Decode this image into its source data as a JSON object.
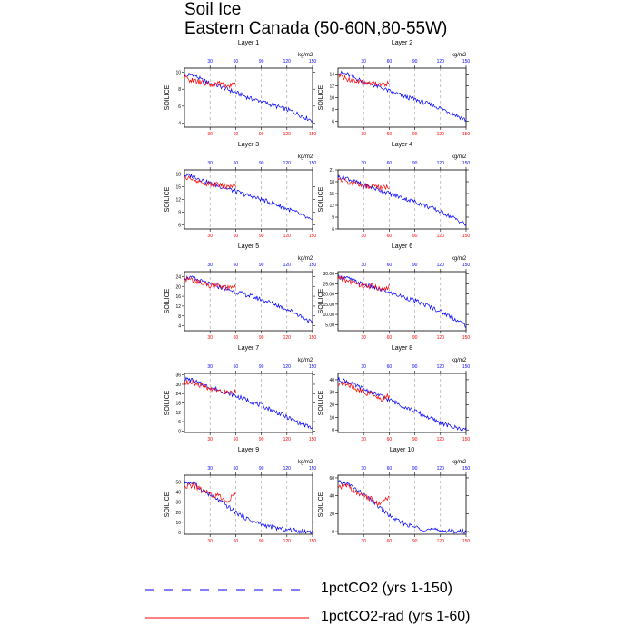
{
  "figure": {
    "title": "Soil Ice",
    "subtitle": "Eastern Canada (50-60N,80-55W)",
    "ylabel": "SOILICE",
    "top_axis_label": "kg/m2"
  },
  "legend": {
    "items": [
      {
        "label": "1pctCO2 (yrs 1-150)",
        "color": "#0000ff",
        "style": "dashed"
      },
      {
        "label": "1pctCO2-rad (yrs 1-60)",
        "color": "#ff0000",
        "style": "solid"
      }
    ]
  },
  "colors": {
    "blue_series": "#0000ff",
    "red_series": "#ff0000",
    "top_ticks": "#0000ff",
    "bottom_ticks": "#ff0000",
    "grid": "#9a9a9a"
  },
  "chart_data": [
    {
      "type": "line",
      "title": "Layer 1",
      "xlabel": "",
      "ylabel": "SOILICE",
      "xlim": [
        0,
        150
      ],
      "x_ticks": [
        30,
        60,
        90,
        120,
        150
      ],
      "ylim": [
        3.5,
        10.5
      ],
      "y_ticks": [
        "4",
        "6",
        "8",
        "10"
      ],
      "y_tick_values": [
        4,
        6,
        8,
        10
      ],
      "grid": "vertical dashed",
      "series": [
        {
          "x": [
            0,
            10,
            20,
            30,
            40,
            50,
            60,
            70,
            80,
            90,
            100,
            110,
            120,
            130,
            140,
            150
          ],
          "values": [
            9.6,
            9.8,
            9.1,
            8.7,
            8.4,
            8.0,
            7.6,
            7.2,
            6.8,
            6.6,
            6.2,
            5.9,
            5.6,
            5.2,
            4.7,
            4.3
          ]
        },
        {
          "x": [
            0,
            10,
            20,
            30,
            40,
            50,
            60
          ],
          "values": [
            9.4,
            9.0,
            8.8,
            8.5,
            8.7,
            8.4,
            8.6
          ]
        }
      ]
    },
    {
      "type": "line",
      "title": "Layer 2",
      "xlabel": "",
      "ylabel": "SOILICE",
      "xlim": [
        0,
        150
      ],
      "x_ticks": [
        30,
        60,
        90,
        120,
        150
      ],
      "ylim": [
        5,
        15
      ],
      "y_ticks": [
        "6",
        "8",
        "10",
        "12",
        "14"
      ],
      "y_tick_values": [
        6,
        8,
        10,
        12,
        14
      ],
      "grid": "vertical dashed",
      "series": [
        {
          "x": [
            0,
            10,
            20,
            30,
            40,
            50,
            60,
            70,
            80,
            90,
            100,
            110,
            120,
            130,
            140,
            150
          ],
          "values": [
            14.2,
            14.0,
            13.3,
            12.7,
            12.2,
            11.7,
            11.1,
            10.6,
            10.1,
            9.7,
            9.2,
            8.7,
            8.2,
            7.6,
            6.9,
            6.2
          ]
        },
        {
          "x": [
            0,
            10,
            20,
            30,
            40,
            50,
            60
          ],
          "values": [
            13.8,
            13.2,
            12.8,
            12.4,
            12.6,
            12.2,
            12.4
          ]
        }
      ]
    },
    {
      "type": "line",
      "title": "Layer 3",
      "xlabel": "",
      "ylabel": "SOILICE",
      "xlim": [
        0,
        150
      ],
      "x_ticks": [
        30,
        60,
        90,
        120,
        150
      ],
      "ylim": [
        5,
        19
      ],
      "y_ticks": [
        "6",
        "9",
        "12",
        "15",
        "18"
      ],
      "y_tick_values": [
        6,
        9,
        12,
        15,
        18
      ],
      "grid": "vertical dashed",
      "series": [
        {
          "x": [
            0,
            10,
            20,
            30,
            40,
            50,
            60,
            70,
            80,
            90,
            100,
            110,
            120,
            130,
            140,
            150
          ],
          "values": [
            17.7,
            17.6,
            16.7,
            15.8,
            15.2,
            14.6,
            13.9,
            13.2,
            12.6,
            12.0,
            11.3,
            10.6,
            9.8,
            9.0,
            8.0,
            6.8
          ]
        },
        {
          "x": [
            0,
            10,
            20,
            30,
            40,
            50,
            60
          ],
          "values": [
            17.3,
            16.6,
            16.0,
            15.5,
            15.6,
            15.1,
            15.4
          ]
        }
      ]
    },
    {
      "type": "line",
      "title": "Layer 4",
      "xlabel": "",
      "ylabel": "SOILICE",
      "xlim": [
        0,
        150
      ],
      "x_ticks": [
        30,
        60,
        90,
        120,
        150
      ],
      "ylim": [
        6,
        21
      ],
      "y_ticks": [
        "6",
        "9",
        "12",
        "15",
        "18",
        "21"
      ],
      "y_tick_values": [
        6,
        9,
        12,
        15,
        18,
        21
      ],
      "grid": "vertical dashed",
      "series": [
        {
          "x": [
            0,
            10,
            20,
            30,
            40,
            50,
            60,
            70,
            80,
            90,
            100,
            110,
            120,
            130,
            140,
            150
          ],
          "values": [
            19.2,
            19.0,
            18.0,
            17.1,
            16.5,
            15.8,
            15.0,
            14.3,
            13.6,
            12.9,
            12.1,
            11.3,
            10.4,
            9.4,
            8.3,
            7.0
          ]
        },
        {
          "x": [
            0,
            10,
            20,
            30,
            40,
            50,
            60
          ],
          "values": [
            18.7,
            18.0,
            17.4,
            16.8,
            16.9,
            16.4,
            16.8
          ]
        }
      ]
    },
    {
      "type": "line",
      "title": "Layer 5",
      "xlabel": "",
      "ylabel": "SOILICE",
      "xlim": [
        0,
        150
      ],
      "x_ticks": [
        30,
        60,
        90,
        120,
        150
      ],
      "ylim": [
        2,
        26
      ],
      "y_ticks": [
        "4",
        "8",
        "12",
        "16",
        "20",
        "24"
      ],
      "y_tick_values": [
        4,
        8,
        12,
        16,
        20,
        24
      ],
      "grid": "vertical dashed",
      "series": [
        {
          "x": [
            0,
            10,
            20,
            30,
            40,
            50,
            60,
            70,
            80,
            90,
            100,
            110,
            120,
            130,
            140,
            150
          ],
          "values": [
            23.6,
            23.3,
            22.0,
            20.8,
            19.9,
            18.9,
            17.8,
            16.8,
            15.8,
            14.7,
            13.5,
            12.2,
            10.8,
            9.2,
            7.3,
            5.0
          ]
        },
        {
          "x": [
            0,
            10,
            20,
            30,
            40,
            50,
            60
          ],
          "values": [
            23.2,
            22.4,
            21.3,
            20.4,
            20.2,
            19.2,
            19.8
          ]
        }
      ]
    },
    {
      "type": "line",
      "title": "Layer 6",
      "xlabel": "",
      "ylabel": "SOILICE",
      "xlim": [
        0,
        150
      ],
      "x_ticks": [
        30,
        60,
        90,
        120,
        150
      ],
      "ylim": [
        2,
        31
      ],
      "y_ticks": [
        "5.00",
        "10.00",
        "15.00",
        "20.00",
        "25.00",
        "30.00"
      ],
      "y_tick_values": [
        5,
        10,
        15,
        20,
        25,
        30
      ],
      "grid": "vertical dashed",
      "series": [
        {
          "x": [
            0,
            10,
            20,
            30,
            40,
            50,
            60,
            70,
            80,
            90,
            100,
            110,
            120,
            130,
            140,
            150
          ],
          "values": [
            28.5,
            28.0,
            26.2,
            24.6,
            23.4,
            22.1,
            20.7,
            19.4,
            18.1,
            16.7,
            15.1,
            13.4,
            11.5,
            9.4,
            7.0,
            4.5
          ]
        },
        {
          "x": [
            0,
            10,
            20,
            30,
            40,
            50,
            60
          ],
          "values": [
            27.8,
            26.7,
            25.3,
            24.0,
            23.8,
            22.5,
            23.5
          ]
        }
      ]
    },
    {
      "type": "line",
      "title": "Layer 7",
      "xlabel": "",
      "ylabel": "SOILICE",
      "xlim": [
        0,
        150
      ],
      "x_ticks": [
        30,
        60,
        90,
        120,
        150
      ],
      "ylim": [
        -1,
        37
      ],
      "y_ticks": [
        "0",
        "6",
        "12",
        "18",
        "24",
        "30",
        "36"
      ],
      "y_tick_values": [
        0,
        6,
        12,
        18,
        24,
        30,
        36
      ],
      "grid": "vertical dashed",
      "series": [
        {
          "x": [
            0,
            10,
            20,
            30,
            40,
            50,
            60,
            70,
            80,
            90,
            100,
            110,
            120,
            130,
            140,
            150
          ],
          "values": [
            33.5,
            32.5,
            30.0,
            28.0,
            26.4,
            24.6,
            22.5,
            20.6,
            18.5,
            16.3,
            14.0,
            11.5,
            8.9,
            6.3,
            3.8,
            1.8
          ]
        },
        {
          "x": [
            0,
            10,
            20,
            30,
            40,
            50,
            60
          ],
          "values": [
            31.5,
            31.0,
            29.0,
            27.3,
            26.8,
            24.5,
            25.5
          ]
        }
      ]
    },
    {
      "type": "line",
      "title": "Layer 8",
      "xlabel": "",
      "ylabel": "SOILICE",
      "xlim": [
        0,
        150
      ],
      "x_ticks": [
        30,
        60,
        90,
        120,
        150
      ],
      "ylim": [
        -2,
        45
      ],
      "y_ticks": [
        "0",
        "10",
        "20",
        "30",
        "40"
      ],
      "y_tick_values": [
        0,
        10,
        20,
        30,
        40
      ],
      "grid": "vertical dashed",
      "series": [
        {
          "x": [
            0,
            10,
            20,
            30,
            40,
            50,
            60,
            70,
            80,
            90,
            100,
            110,
            120,
            130,
            140,
            150
          ],
          "values": [
            40.0,
            39.0,
            35.5,
            32.5,
            30.0,
            27.0,
            24.0,
            21.0,
            18.0,
            15.0,
            11.8,
            8.6,
            5.6,
            3.2,
            1.5,
            0.6
          ]
        },
        {
          "x": [
            0,
            10,
            20,
            30,
            40,
            50,
            60
          ],
          "values": [
            37.0,
            36.5,
            33.5,
            30.0,
            28.0,
            24.0,
            27.0
          ]
        }
      ]
    },
    {
      "type": "line",
      "title": "Layer 9",
      "xlabel": "",
      "ylabel": "SOILICE",
      "xlim": [
        0,
        150
      ],
      "x_ticks": [
        30,
        60,
        90,
        120,
        150
      ],
      "ylim": [
        -2,
        57
      ],
      "y_ticks": [
        "0",
        "10",
        "20",
        "30",
        "40",
        "50"
      ],
      "y_tick_values": [
        0,
        10,
        20,
        30,
        40,
        50
      ],
      "grid": "vertical dashed",
      "series": [
        {
          "x": [
            0,
            10,
            20,
            30,
            40,
            50,
            60,
            70,
            80,
            90,
            100,
            110,
            120,
            130,
            140,
            150
          ],
          "values": [
            50.0,
            49.0,
            43.0,
            37.0,
            32.0,
            26.0,
            20.0,
            15.0,
            11.0,
            8.0,
            5.6,
            3.8,
            2.5,
            1.6,
            1.0,
            0.6
          ]
        },
        {
          "x": [
            0,
            10,
            20,
            30,
            40,
            50,
            60
          ],
          "values": [
            45.0,
            47.0,
            42.0,
            38.0,
            36.0,
            32.0,
            38.0
          ]
        }
      ]
    },
    {
      "type": "line",
      "title": "Layer 10",
      "xlabel": "",
      "ylabel": "SOILICE",
      "xlim": [
        0,
        150
      ],
      "x_ticks": [
        30,
        60,
        90,
        120,
        150
      ],
      "ylim": [
        -3,
        63
      ],
      "y_ticks": [
        "0",
        "20",
        "40",
        "60"
      ],
      "y_tick_values": [
        0,
        20,
        40,
        60
      ],
      "grid": "vertical dashed",
      "series": [
        {
          "x": [
            0,
            10,
            20,
            30,
            40,
            50,
            60,
            70,
            80,
            90,
            100,
            110,
            120,
            130,
            140,
            150
          ],
          "values": [
            55.0,
            54.0,
            48.0,
            41.0,
            34.0,
            26.0,
            18.0,
            12.0,
            8.0,
            5.0,
            3.0,
            1.8,
            1.1,
            0.6,
            0.3,
            0.2
          ]
        },
        {
          "x": [
            0,
            10,
            20,
            30,
            40,
            50,
            60
          ],
          "values": [
            48.0,
            52.0,
            44.0,
            40.0,
            36.0,
            30.0,
            40.0
          ]
        }
      ]
    }
  ]
}
